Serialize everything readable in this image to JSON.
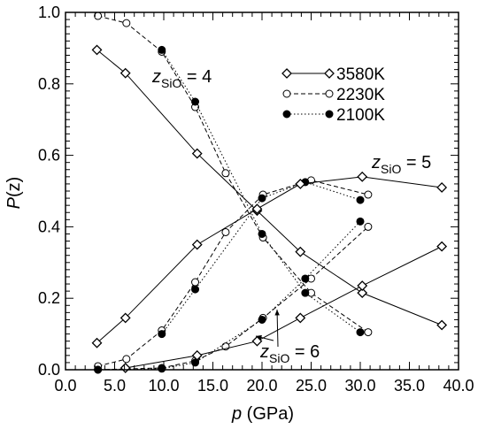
{
  "chart_data": {
    "type": "line",
    "xlabel": {
      "italic": "p",
      "rest": " (GPa)"
    },
    "ylabel": {
      "italic": "P",
      "rest": "(z)"
    },
    "xlim": [
      0,
      40
    ],
    "ylim": [
      0,
      1.0
    ],
    "x_ticks": [
      "0.0",
      "5.0",
      "10.0",
      "15.0",
      "20.0",
      "25.0",
      "30.0",
      "35.0",
      "40.0"
    ],
    "x_tick_values": [
      0,
      5,
      10,
      15,
      20,
      25,
      30,
      35,
      40
    ],
    "y_ticks": [
      "0.0",
      "0.2",
      "0.4",
      "0.6",
      "0.8",
      "1.0"
    ],
    "y_tick_values": [
      0,
      0.2,
      0.4,
      0.6,
      0.8,
      1.0
    ],
    "grid": false,
    "legend_position": "top-right",
    "series": [
      {
        "name": "3580K",
        "line": "solid",
        "marker": "diamond-open",
        "curves": [
          {
            "z": 4,
            "x": [
              3.2,
              6.1,
              13.4,
              19.5,
              23.9,
              30.2,
              38.3
            ],
            "y": [
              0.895,
              0.83,
              0.605,
              0.445,
              0.33,
              0.215,
              0.125
            ]
          },
          {
            "z": 5,
            "x": [
              3.2,
              6.1,
              13.4,
              19.5,
              23.9,
              30.2,
              38.3
            ],
            "y": [
              0.075,
              0.145,
              0.35,
              0.45,
              0.52,
              0.54,
              0.51
            ]
          },
          {
            "z": 6,
            "x": [
              6.1,
              13.4,
              19.5,
              23.9,
              30.2,
              38.3
            ],
            "y": [
              0.005,
              0.04,
              0.08,
              0.145,
              0.235,
              0.345
            ]
          }
        ]
      },
      {
        "name": "2230K",
        "line": "dashed",
        "marker": "circle-open",
        "curves": [
          {
            "z": 4,
            "x": [
              3.3,
              6.2,
              9.8,
              13.2,
              16.3,
              20.1,
              25.0,
              30.8
            ],
            "y": [
              0.99,
              0.97,
              0.89,
              0.735,
              0.55,
              0.37,
              0.215,
              0.105
            ]
          },
          {
            "z": 5,
            "x": [
              3.3,
              6.2,
              9.8,
              13.2,
              16.3,
              20.1,
              25.0,
              30.8
            ],
            "y": [
              0.01,
              0.03,
              0.11,
              0.245,
              0.385,
              0.49,
              0.53,
              0.49
            ]
          },
          {
            "z": 6,
            "x": [
              3.3,
              9.8,
              13.2,
              16.3,
              20.1,
              25.0,
              30.8
            ],
            "y": [
              0.0,
              0.005,
              0.025,
              0.065,
              0.145,
              0.255,
              0.4
            ]
          }
        ]
      },
      {
        "name": "2100K",
        "line": "dotted",
        "marker": "circle-filled",
        "curves": [
          {
            "z": 4,
            "x": [
              9.8,
              13.2,
              20.0,
              24.4,
              30.0
            ],
            "y": [
              0.895,
              0.75,
              0.38,
              0.215,
              0.105
            ]
          },
          {
            "z": 5,
            "x": [
              9.8,
              13.2,
              20.0,
              24.4,
              30.0
            ],
            "y": [
              0.1,
              0.225,
              0.48,
              0.525,
              0.475
            ]
          },
          {
            "z": 6,
            "x": [
              3.3,
              9.8,
              13.2,
              20.0,
              24.4,
              30.0
            ],
            "y": [
              0.0,
              0.003,
              0.02,
              0.14,
              0.255,
              0.415
            ]
          }
        ]
      }
    ],
    "annotations": [
      {
        "base": "z",
        "sub": "SiO",
        "tail": " = 4"
      },
      {
        "base": "z",
        "sub": "SiO",
        "tail": " = 5"
      },
      {
        "base": "z",
        "sub": "SiO",
        "tail": " = 6"
      }
    ]
  }
}
